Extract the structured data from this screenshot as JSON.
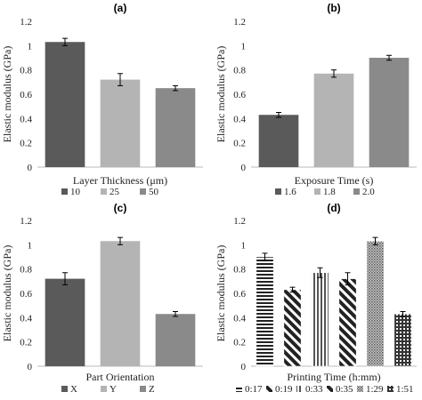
{
  "chart_data": [
    {
      "type": "bar",
      "title": "(a)",
      "xlabel": "Layer Thickness (μm)",
      "ylabel": "Elastic modulus (GPa)",
      "ylim": [
        0,
        1.2
      ],
      "yticks": [
        "0",
        "0.2",
        "0.4",
        "0.6",
        "0.8",
        "1",
        "1.2"
      ],
      "categories": [
        "10",
        "25",
        "50"
      ],
      "values": [
        1.03,
        0.72,
        0.65
      ],
      "errors": [
        0.03,
        0.05,
        0.02
      ],
      "colors": [
        "#5a5a5a",
        "#b4b4b4",
        "#8a8a8a"
      ],
      "legend": [
        "10",
        "25",
        "50"
      ],
      "legend_position": "bottom"
    },
    {
      "type": "bar",
      "title": "(b)",
      "xlabel": "Exposure Time (s)",
      "ylabel": "Elastic modulus (GPa)",
      "ylim": [
        0,
        1.2
      ],
      "yticks": [
        "0",
        "0.2",
        "0.4",
        "0.6",
        "0.8",
        "1",
        "1.2"
      ],
      "categories": [
        "1.6",
        "1.8",
        "2.0"
      ],
      "values": [
        0.43,
        0.77,
        0.9
      ],
      "errors": [
        0.02,
        0.03,
        0.02
      ],
      "colors": [
        "#5a5a5a",
        "#b4b4b4",
        "#8a8a8a"
      ],
      "legend": [
        "1.6",
        "1.8",
        "2.0"
      ],
      "legend_position": "bottom"
    },
    {
      "type": "bar",
      "title": "(c)",
      "xlabel": "Part Orientation",
      "ylabel": "Elastic modulus (GPa)",
      "ylim": [
        0,
        1.2
      ],
      "yticks": [
        "0",
        "0.2",
        "0.4",
        "0.6",
        "0.8",
        "1",
        "1.2"
      ],
      "categories": [
        "X",
        "Y",
        "Z"
      ],
      "values": [
        0.72,
        1.03,
        0.43
      ],
      "errors": [
        0.05,
        0.03,
        0.02
      ],
      "colors": [
        "#5a5a5a",
        "#b4b4b4",
        "#8a8a8a"
      ],
      "legend": [
        "X",
        "Y",
        "Z"
      ],
      "legend_position": "bottom"
    },
    {
      "type": "bar",
      "title": "(d)",
      "xlabel": "Printing Time (h:mm)",
      "ylabel": "Elastic modulus (GPa)",
      "ylim": [
        0,
        1.2
      ],
      "yticks": [
        "0",
        "0.2",
        "0.4",
        "0.6",
        "0.8",
        "1",
        "1.2"
      ],
      "categories": [
        "0:17",
        "0:19",
        "0:33",
        "0:35",
        "1:29",
        "1:51"
      ],
      "values": [
        0.9,
        0.63,
        0.77,
        0.72,
        1.03,
        0.43
      ],
      "errors": [
        0.03,
        0.02,
        0.04,
        0.05,
        0.03,
        0.02
      ],
      "patterns": [
        "hstripes",
        "diagbold",
        "vstripes",
        "diagbold",
        "dots",
        "grid"
      ],
      "legend": [
        "0:17",
        "0:19",
        "0:33",
        "0:35",
        "1:29",
        "1:51"
      ],
      "legend_position": "bottom"
    }
  ]
}
